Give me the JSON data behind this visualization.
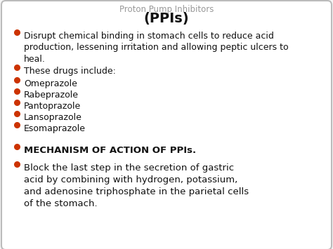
{
  "title_top": "Proton Pump Inhibitors",
  "title_main": "(PPIs)",
  "bg_color": "#f5f5f5",
  "card_color": "#ffffff",
  "border_color": "#bbbbbb",
  "bullet_color": "#cc3300",
  "text_color": "#111111",
  "title_color": "#111111",
  "mechanism_heading": "MECHANISM OF ACTION OF PPIs.",
  "mechanism_text": "Block the last step in the secretion of gastric\nacid by combining with hydrogen, potassium,\nand adenosine triphosphate in the parietal cells\nof the stomach.",
  "font_size_body": 9.0,
  "font_size_title_main": 14,
  "font_size_top_title": 8.5,
  "bullet_items": [
    "Disrupt chemical binding in stomach cells to reduce acid\nproduction, lessening irritation and allowing peptic ulcers to\nheal.",
    "These drugs include:",
    "Omeprazole",
    "Rabeprazole",
    "Pantoprazole",
    "Lansoprazole",
    "Esomaprazole"
  ]
}
